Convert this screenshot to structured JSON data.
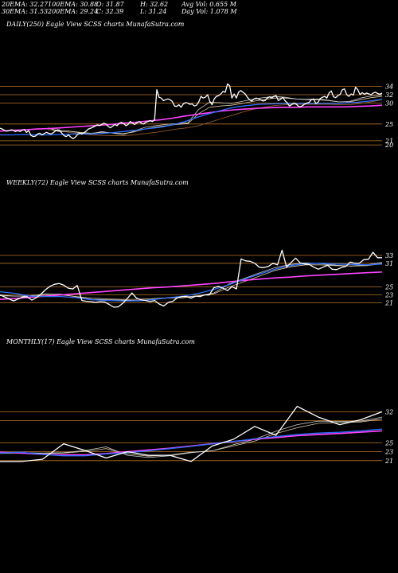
{
  "header": {
    "row1": [
      "20EMA: 32.27",
      "100EMA: 30.88",
      "O: 31.87",
      "H: 32.62",
      "Avg Vol: 0.655 M"
    ],
    "row2": [
      "30EMA: 31.53",
      "200EMA: 29.24",
      "C: 32.39",
      "L: 31.24",
      "Day Vol: 1.078 M"
    ]
  },
  "colors": {
    "background": "#000000",
    "price": "#ffffff",
    "ema20": "#cccccc",
    "ema30": "#d9c9a8",
    "ema100": "#2f6fff",
    "ema200": "#ff44ff",
    "ref_line": "#b8742a",
    "secondary": "#8b5a2b"
  },
  "chart_data": [
    {
      "type": "line",
      "title": "DAILY(250) Eagle  View  SCSS charts MunafaSutra.com",
      "ylim": [
        18.5,
        36
      ],
      "ref_lines": [
        34,
        32,
        30,
        25,
        21,
        20
      ],
      "ref_labels": [
        "34",
        "32",
        "30",
        "25",
        "21",
        "20"
      ],
      "series": [
        {
          "key": "price",
          "values": [
            24,
            23.8,
            23.5,
            23.3,
            23.4,
            23.6,
            23.5,
            23.2,
            23.4,
            23.2,
            23.5,
            23.7,
            23.0,
            23.4,
            22.3,
            22.0,
            22.1,
            22.6,
            22.8,
            22.4,
            22.7,
            23.0,
            22.8,
            22.6,
            22.9,
            23.3,
            23.6,
            23.5,
            22.8,
            22.2,
            22.0,
            22.4,
            21.9,
            21.5,
            21.8,
            22.4,
            22.8,
            22.6,
            22.9,
            23.3,
            23.8,
            24.0,
            24.2,
            24.5,
            24.8,
            24.6,
            24.9,
            25.2,
            25.0,
            24.4,
            24.1,
            24.5,
            24.9,
            24.6,
            25.2,
            25.4,
            25.1,
            24.6,
            24.9,
            25.6,
            25.2,
            24.9,
            25.3,
            25.6,
            25.2,
            25.0,
            25.4,
            25.6,
            25.8,
            25.6,
            26.0,
            33.2,
            31.4,
            31.2,
            30.6,
            30.8,
            31.0,
            30.8,
            30.4,
            29.3,
            29.2,
            29.6,
            29.0,
            29.8,
            30.1,
            30.0,
            29.7,
            29.8,
            29.3,
            29.5,
            30.3,
            31.6,
            31.2,
            31.4,
            32.0,
            30.4,
            29.6,
            31.0,
            31.6,
            31.8,
            32.2,
            32.8,
            32.6,
            34.6,
            34.1,
            31.2,
            32.2,
            31.2,
            32.6,
            33.0,
            32.6,
            32.2,
            31.4,
            30.8,
            30.5,
            31.0,
            31.2,
            31.0,
            30.8,
            30.5,
            30.6,
            31.2,
            31.5,
            31.2,
            31.6,
            31.8,
            30.6,
            30.9,
            31.4,
            30.6,
            30.1,
            29.3,
            29.6,
            30.0,
            29.8,
            29.3,
            29.1,
            29.4,
            29.8,
            30.0,
            30.2,
            30.8,
            31.0,
            29.9,
            30.2,
            31.1,
            31.4,
            31.6,
            31.2,
            32.4,
            32.9,
            31.5,
            31.3,
            31.8,
            32.1,
            33.2,
            33.4,
            32.0,
            31.6,
            32.2,
            31.9,
            33.8,
            33.2,
            32.0,
            32.5,
            32.1,
            32.4,
            32.2,
            32.0,
            32.4,
            32.6,
            32.3,
            32.1,
            32.4
          ]
        },
        {
          "key": "ema20",
          "values": [
            24.1,
            23.2,
            23.3,
            22.9,
            22.6,
            23.2,
            22.8,
            22.5,
            23.3,
            24.2,
            24.6,
            24.9,
            25.1,
            25.3,
            28.5,
            30.2,
            30.1,
            29.9,
            30.4,
            30.9,
            31.3,
            31.6,
            31.4,
            31.0,
            30.9,
            31.0,
            30.7,
            30.3,
            30.4,
            31.2,
            31.7,
            31.9
          ]
        },
        {
          "key": "ema30",
          "values": [
            24.0,
            23.4,
            23.3,
            23.0,
            22.8,
            23.0,
            22.9,
            22.7,
            23.1,
            23.8,
            24.3,
            24.6,
            24.9,
            25.1,
            27.5,
            29.0,
            29.3,
            29.5,
            29.9,
            30.4,
            30.8,
            31.2,
            31.2,
            31.0,
            30.8,
            30.8,
            30.6,
            30.3,
            30.3,
            30.8,
            31.3,
            31.6
          ]
        },
        {
          "key": "ema100",
          "values": [
            22.4,
            22.4,
            22.5,
            22.4,
            22.4,
            22.5,
            22.6,
            22.6,
            22.7,
            22.9,
            23.2,
            23.5,
            23.9,
            24.2,
            24.8,
            25.6,
            26.6,
            27.5,
            28.3,
            29.0,
            29.4,
            29.7,
            29.8,
            29.9,
            29.9,
            29.9,
            29.9,
            29.9,
            30.0,
            30.2,
            30.5,
            30.9
          ]
        },
        {
          "key": "ema200",
          "values": [
            23.3,
            23.5,
            23.6,
            23.8,
            23.9,
            24.1,
            24.3,
            24.5,
            24.7,
            24.9,
            25.2,
            25.4,
            25.7,
            26.0,
            26.4,
            26.9,
            27.3,
            27.7,
            28.1,
            28.4,
            28.6,
            28.8,
            28.9,
            29.0,
            29.0,
            29.1,
            29.1,
            29.1,
            29.1,
            29.2,
            29.3,
            29.5
          ]
        },
        {
          "key": "secondary",
          "values": [
            23.6,
            23.4,
            23.0,
            22.7,
            22.4,
            22.3,
            22.2,
            22.2,
            22.4,
            22.7,
            23.0,
            23.4,
            23.8,
            24.1,
            24.6,
            25.4,
            26.2,
            27.0,
            27.8,
            28.5,
            29.0,
            29.4,
            29.6,
            29.7,
            29.7,
            29.7,
            29.7,
            29.6,
            29.6,
            29.9,
            30.3,
            30.8
          ]
        }
      ]
    },
    {
      "type": "line",
      "title": "WEEKLY(72) Eagle  View  SCSS charts MunafaSutra.com",
      "ylim": [
        19.5,
        38
      ],
      "ref_lines": [
        33,
        31,
        25,
        23,
        21
      ],
      "ref_labels": [
        "33",
        "31",
        "25",
        "23",
        "21"
      ],
      "series": [
        {
          "key": "price",
          "values": [
            23.0,
            22.5,
            22.0,
            21.5,
            22.0,
            22.5,
            22.5,
            21.7,
            22.3,
            23.2,
            24.3,
            25.2,
            25.7,
            25.9,
            25.5,
            24.7,
            24.5,
            25.4,
            21.6,
            21.4,
            21.3,
            21.1,
            21.3,
            21.2,
            20.6,
            19.9,
            20.0,
            20.9,
            22.1,
            23.5,
            22.2,
            21.8,
            21.6,
            21.3,
            21.6,
            20.7,
            20.2,
            21.1,
            21.4,
            22.3,
            22.6,
            22.6,
            22.2,
            22.7,
            22.6,
            23.0,
            23.0,
            24.8,
            25.2,
            24.7,
            24.1,
            25.1,
            24.5,
            32.1,
            31.6,
            31.5,
            31.0,
            30.0,
            29.9,
            30.2,
            31.0,
            30.6,
            34.3,
            30.1,
            31.2,
            32.3,
            31.1,
            30.8,
            30.7,
            30.0,
            29.5,
            30.0,
            30.5,
            29.5,
            29.4,
            29.9,
            30.2,
            31.3,
            31.0,
            31.0,
            31.9,
            32.0,
            33.8,
            32.4,
            32.4
          ]
        },
        {
          "key": "ema20",
          "values": [
            23.0,
            22.7,
            22.8,
            23.3,
            23.2,
            22.5,
            21.9,
            21.8,
            21.7,
            21.6,
            21.9,
            22.2,
            22.3,
            22.8,
            23.5,
            25.8,
            27.2,
            28.6,
            29.9,
            30.7,
            31.1,
            30.9,
            30.5,
            30.3,
            30.6,
            31.2
          ]
        },
        {
          "key": "ema30",
          "values": [
            22.8,
            22.7,
            22.7,
            23.0,
            23.0,
            22.6,
            22.2,
            22.0,
            21.9,
            21.9,
            22.1,
            22.3,
            22.5,
            22.8,
            23.3,
            25.0,
            26.4,
            27.8,
            29.2,
            30.1,
            30.6,
            30.6,
            30.4,
            30.3,
            30.4,
            30.9
          ]
        },
        {
          "key": "ema100",
          "values": [
            23.8,
            23.4,
            22.7,
            22.6,
            22.6,
            22.3,
            21.8,
            21.6,
            21.5,
            21.5,
            21.8,
            22.3,
            22.7,
            23.4,
            24.4,
            25.6,
            27.0,
            28.3,
            29.5,
            30.4,
            30.9,
            31.0,
            30.8,
            30.7,
            30.6,
            30.8
          ]
        },
        {
          "key": "ema200",
          "values": [
            21.9,
            22.1,
            22.4,
            22.7,
            23.0,
            23.3,
            23.6,
            23.9,
            24.2,
            24.5,
            24.8,
            25.0,
            25.3,
            25.6,
            25.9,
            26.3,
            26.7,
            27.0,
            27.3,
            27.5,
            27.8,
            28.0,
            28.2,
            28.4,
            28.6,
            28.8
          ]
        }
      ]
    },
    {
      "type": "line",
      "title": "MONTHLY(17) Eagle  View  SCSS charts MunafaSutra.com",
      "ylim": [
        19,
        36
      ],
      "ref_lines": [
        32,
        30,
        25,
        23,
        21
      ],
      "ref_labels": [
        "32",
        "",
        "25",
        "23",
        "21"
      ],
      "series": [
        {
          "key": "price",
          "values": [
            20.8,
            20.8,
            21.3,
            24.8,
            23.3,
            21.6,
            23.0,
            22.2,
            22.2,
            20.8,
            24.3,
            25.8,
            28.7,
            26.7,
            33.2,
            30.8,
            29.1,
            30.2,
            32.0
          ]
        },
        {
          "key": "ema20",
          "values": [
            22.8,
            22.8,
            22.7,
            22.8,
            23.3,
            24.1,
            22.2,
            21.7,
            22.1,
            22.8,
            23.2,
            24.6,
            25.8,
            27.6,
            29.1,
            29.9,
            29.8,
            29.9,
            30.8
          ]
        },
        {
          "key": "ema30",
          "values": [
            22.6,
            22.7,
            22.6,
            22.7,
            23.1,
            23.7,
            22.5,
            22.0,
            22.3,
            22.9,
            23.2,
            24.3,
            25.4,
            27.1,
            28.4,
            29.4,
            29.6,
            29.7,
            30.4
          ]
        },
        {
          "key": "ema100",
          "values": [
            22.7,
            22.9,
            22.4,
            22.1,
            22.1,
            22.5,
            22.8,
            23.2,
            23.7,
            24.2,
            24.8,
            25.3,
            25.9,
            26.4,
            26.9,
            27.2,
            27.4,
            27.7,
            28.1
          ]
        },
        {
          "key": "ema200",
          "values": [
            22.9,
            22.7,
            22.4,
            22.3,
            22.3,
            22.6,
            23.0,
            23.4,
            23.8,
            24.3,
            24.8,
            25.3,
            25.8,
            26.2,
            26.6,
            26.9,
            27.1,
            27.4,
            27.7
          ]
        }
      ]
    }
  ]
}
